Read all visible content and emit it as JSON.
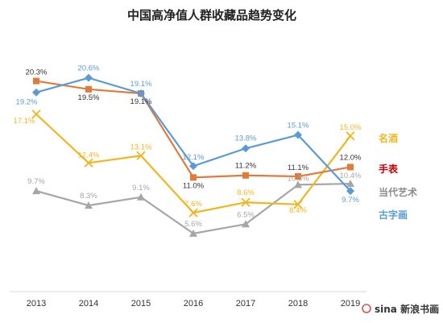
{
  "chart_data": {
    "type": "line",
    "title": "中国高净值人群收藏品趋势变化",
    "categories": [
      "2013",
      "2014",
      "2015",
      "2016",
      "2017",
      "2018",
      "2019"
    ],
    "ylim": [
      0,
      25
    ],
    "grid": false,
    "legend_position": "right",
    "series": [
      {
        "name": "名酒",
        "color": "#f2b51e",
        "marker": "x",
        "values": [
          17.1,
          12.4,
          13.1,
          7.6,
          8.6,
          8.4,
          15.0
        ],
        "labels": [
          "17.1%",
          "12.4%",
          "13.1%",
          "7.6%",
          "8.6%",
          "8.4%",
          "15.0%"
        ]
      },
      {
        "name": "手表",
        "color": "#e07b39",
        "marker": "square",
        "values": [
          20.3,
          19.5,
          19.1,
          11.0,
          11.2,
          11.1,
          12.0
        ],
        "labels": [
          "20.3%",
          "19.5%",
          "19.1%",
          "11.0%",
          "11.2%",
          "11.1%",
          "12.0%"
        ]
      },
      {
        "name": "当代艺术",
        "color": "#a6a6a6",
        "marker": "triangle",
        "values": [
          9.7,
          8.3,
          9.1,
          5.6,
          6.5,
          10.3,
          10.4
        ],
        "labels": [
          "9.7%",
          "8.3%",
          "9.1%",
          "5.6%",
          "6.5%",
          "10.3%",
          "10.4%"
        ]
      },
      {
        "name": "古字画",
        "color": "#5b9bd5",
        "marker": "diamond",
        "values": [
          19.2,
          20.6,
          19.1,
          12.1,
          13.8,
          15.1,
          9.7
        ],
        "labels": [
          "19.2%",
          "20.6%",
          "19.1%",
          "12.1%",
          "13.8%",
          "15.1%",
          "9.7%"
        ]
      }
    ]
  },
  "watermark": "sina 新浪书画"
}
